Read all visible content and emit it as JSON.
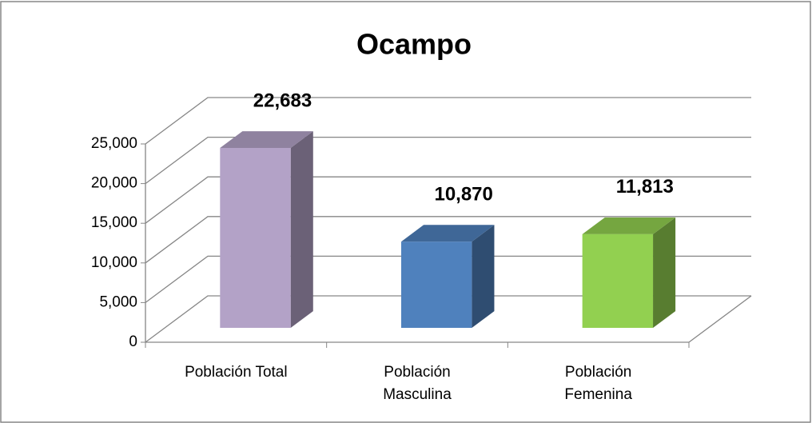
{
  "chart_data": {
    "type": "bar3d",
    "title": "Ocampo",
    "categories": [
      "Población Total",
      "Población Masculina",
      "Población Femenina"
    ],
    "values": [
      22683,
      10870,
      11813
    ],
    "value_labels": [
      "22,683",
      "10,870",
      "11,813"
    ],
    "colors": [
      "#b3a2c7",
      "#4f81bd",
      "#92d050"
    ],
    "ylim": [
      0,
      25000
    ],
    "yticks": [
      0,
      {
        "value": 5000,
        "label": "5,000"
      },
      {
        "value": 10000,
        "label": "10,000"
      },
      {
        "value": 15000,
        "label": "15,000"
      },
      {
        "value": 20000,
        "label": "20,000"
      },
      {
        "value": 25000,
        "label": "25,000"
      }
    ],
    "grid": true
  }
}
